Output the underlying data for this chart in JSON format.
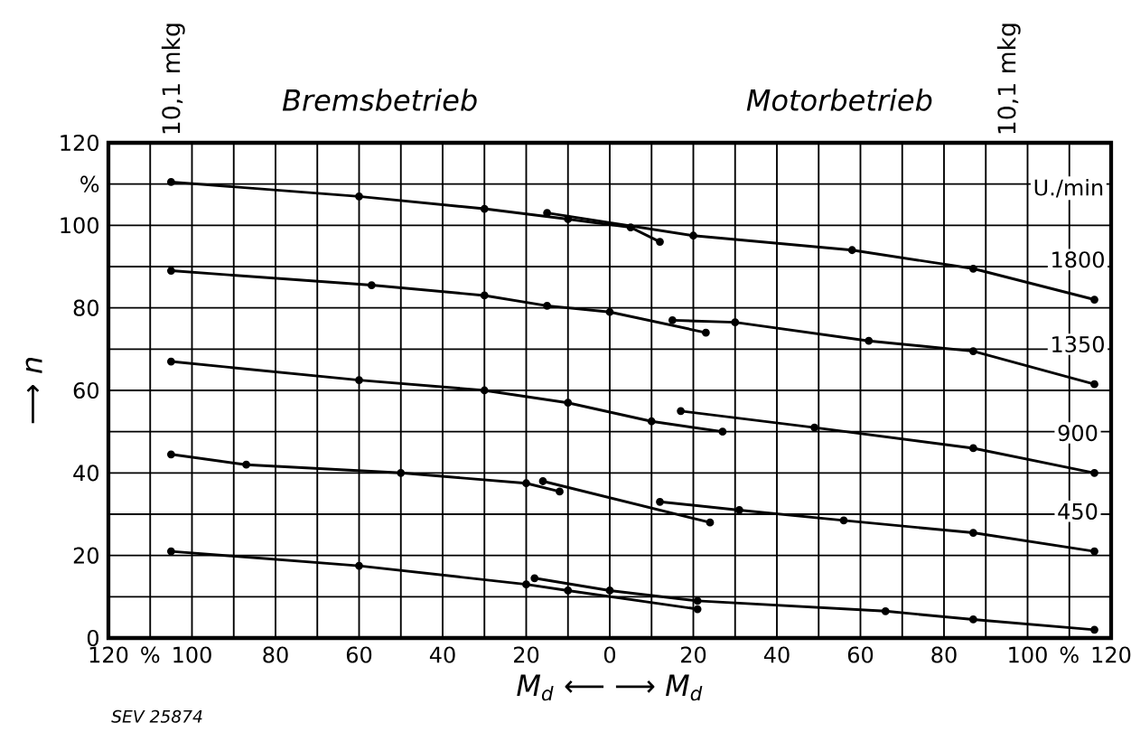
{
  "chart_data": {
    "type": "line",
    "xlabel": "M$_{d}$  ⟵          ⟶  M$_{d}$",
    "ylabel": "⟶  n",
    "annotations": [
      "10,1 mkg",
      "Bremsbetrieb",
      "Motorbetrieb",
      "10,1 mkg",
      "U./min",
      "SEV 25874"
    ],
    "xlim": [
      -120,
      120
    ],
    "ylim": [
      0,
      120
    ],
    "xticks": [
      {
        "value": -120,
        "label": "120"
      },
      {
        "value": -110,
        "label": "%"
      },
      {
        "value": -100,
        "label": "100"
      },
      {
        "value": -90,
        "label": null
      },
      {
        "value": -80,
        "label": "80"
      },
      {
        "value": -70,
        "label": null
      },
      {
        "value": -60,
        "label": "60"
      },
      {
        "value": -50,
        "label": null
      },
      {
        "value": -40,
        "label": "40"
      },
      {
        "value": -30,
        "label": null
      },
      {
        "value": -20,
        "label": "20"
      },
      {
        "value": -10,
        "label": null
      },
      0,
      {
        "value": 10,
        "label": null
      },
      20,
      {
        "value": 30,
        "label": null
      },
      40,
      {
        "value": 50,
        "label": null
      },
      60,
      {
        "value": 70,
        "label": null
      },
      80,
      {
        "value": 90,
        "label": null
      },
      100,
      {
        "value": 110,
        "label": "%"
      },
      120
    ],
    "yticks": [
      0,
      {
        "value": 10,
        "label": null
      },
      20,
      {
        "value": 30,
        "label": null
      },
      40,
      {
        "value": 50,
        "label": null
      },
      60,
      {
        "value": 70,
        "label": null
      },
      80,
      {
        "value": 90,
        "label": null
      },
      100,
      {
        "value": 110,
        "label": "%"
      },
      120
    ],
    "grid": true,
    "marker": "circle",
    "line_style": "solid",
    "series": [
      {
        "color": "#000000",
        "x": [
          -105,
          -60,
          -30,
          -10,
          5,
          12
        ],
        "values": [
          110.5,
          107,
          104,
          101.5,
          99.5,
          96
        ]
      },
      {
        "name": "1800",
        "color": "#000000",
        "x": [
          -15,
          20,
          58,
          87,
          116
        ],
        "values": [
          103,
          97.5,
          94,
          89.5,
          82
        ]
      },
      {
        "color": "#000000",
        "x": [
          -105,
          -57,
          -30,
          -15,
          0,
          23
        ],
        "values": [
          89,
          85.5,
          83,
          80.5,
          79,
          74
        ]
      },
      {
        "name": "1350",
        "color": "#000000",
        "x": [
          15,
          30,
          62,
          87,
          116
        ],
        "values": [
          77,
          76.5,
          72,
          69.5,
          61.5
        ]
      },
      {
        "color": "#000000",
        "x": [
          -105,
          -60,
          -30,
          -10,
          10,
          27
        ],
        "values": [
          67,
          62.5,
          60,
          57,
          52.5,
          50
        ]
      },
      {
        "name": "900",
        "color": "#000000",
        "x": [
          17,
          49,
          87,
          116
        ],
        "values": [
          55,
          51,
          46,
          40
        ]
      },
      {
        "color": "#000000",
        "x": [
          -105,
          -87,
          -50,
          -20,
          -12
        ],
        "values": [
          44.5,
          42,
          40,
          37.5,
          35.5
        ]
      },
      {
        "color": "#000000",
        "x": [
          -16,
          24
        ],
        "values": [
          38,
          28
        ]
      },
      {
        "name": "450",
        "color": "#000000",
        "x": [
          12,
          31,
          56,
          87,
          116
        ],
        "values": [
          33,
          31,
          28.5,
          25.5,
          21
        ]
      },
      {
        "color": "#000000",
        "x": [
          -105,
          -60,
          -20,
          -10,
          21
        ],
        "values": [
          21,
          17.5,
          13,
          11.5,
          7
        ]
      },
      {
        "color": "#000000",
        "x": [
          -18,
          0,
          21,
          66,
          87,
          116
        ],
        "values": [
          14.5,
          11.5,
          9,
          6.5,
          4.5,
          2
        ]
      }
    ]
  }
}
